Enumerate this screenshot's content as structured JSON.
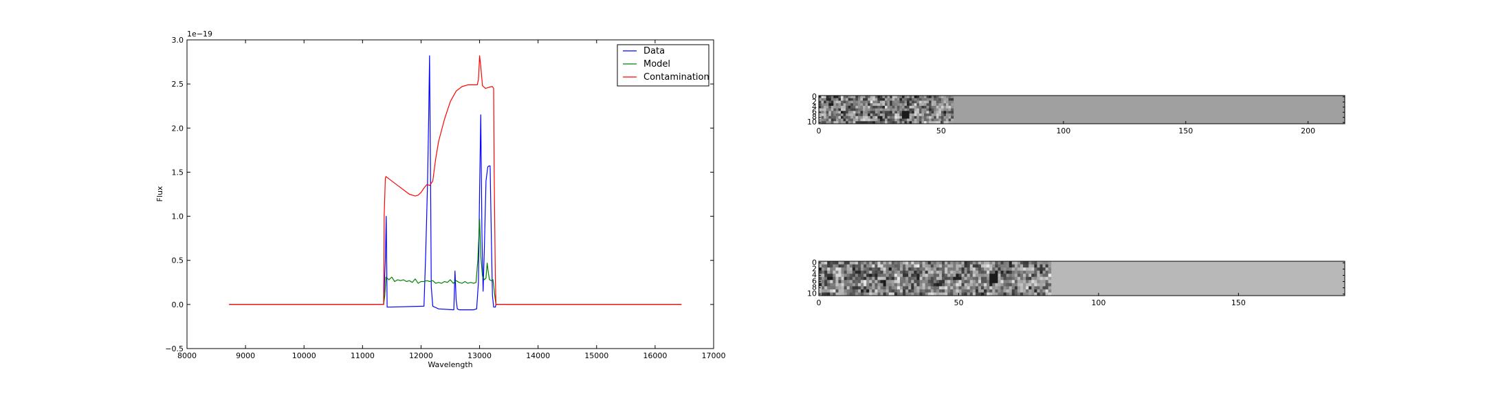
{
  "chart_data": [
    {
      "type": "line",
      "xlabel": "Wavelength",
      "ylabel": "Flux",
      "offset_text": "1e−19",
      "xlim": [
        8000,
        17000
      ],
      "ylim": [
        -0.5,
        3.0
      ],
      "xticks": [
        8000,
        9000,
        10000,
        11000,
        12000,
        13000,
        14000,
        15000,
        16000,
        17000
      ],
      "yticks": [
        -0.5,
        0.0,
        0.5,
        1.0,
        1.5,
        2.0,
        2.5,
        3.0
      ],
      "xtick_labels": [
        "8000",
        "9000",
        "10000",
        "11000",
        "12000",
        "13000",
        "14000",
        "15000",
        "16000",
        "17000"
      ],
      "ytick_labels": [
        "−0.5",
        "0.0",
        "0.5",
        "1.0",
        "1.5",
        "2.0",
        "2.5",
        "3.0"
      ],
      "legend_position": "top-right",
      "grid": false,
      "series": [
        {
          "name": "Data",
          "color": "#0000ff",
          "x": [
            8720,
            11360,
            11390,
            11405,
            11420,
            11450,
            12050,
            12080,
            12110,
            12130,
            12145,
            12160,
            12175,
            12200,
            12300,
            12560,
            12580,
            12600,
            12620,
            12650,
            12700,
            12900,
            12950,
            12980,
            13000,
            13020,
            13040,
            13060,
            13080,
            13110,
            13140,
            13160,
            13180,
            13200,
            13220,
            13240,
            13270,
            13280,
            16450
          ],
          "y": [
            0,
            0,
            0.5,
            1.0,
            -0.03,
            -0.03,
            -0.02,
            0.6,
            1.35,
            2.1,
            2.82,
            1.6,
            0.2,
            -0.02,
            -0.05,
            -0.06,
            0.38,
            0.05,
            -0.05,
            -0.06,
            -0.06,
            -0.06,
            -0.05,
            0.25,
            1.3,
            2.15,
            0.8,
            0.15,
            0.6,
            1.4,
            1.56,
            1.57,
            1.57,
            0.8,
            0.1,
            -0.03,
            -0.03,
            0,
            0
          ]
        },
        {
          "name": "Model",
          "color": "#008000",
          "x": [
            8720,
            11360,
            11380,
            11400,
            11420,
            11450,
            11500,
            11550,
            11600,
            11650,
            11700,
            11750,
            11800,
            11850,
            11900,
            11950,
            12000,
            12050,
            12100,
            12150,
            12200,
            12250,
            12300,
            12350,
            12400,
            12450,
            12500,
            12550,
            12600,
            12650,
            12700,
            12750,
            12800,
            12850,
            12900,
            12940,
            12970,
            13000,
            13020,
            13050,
            13080,
            13110,
            13130,
            13150,
            13170,
            13200,
            13230,
            13260,
            13280,
            16450
          ],
          "y": [
            0,
            0,
            0.1,
            0.31,
            0.3,
            0.28,
            0.31,
            0.26,
            0.28,
            0.27,
            0.28,
            0.26,
            0.27,
            0.25,
            0.29,
            0.24,
            0.26,
            0.26,
            0.27,
            0.26,
            0.27,
            0.24,
            0.25,
            0.24,
            0.26,
            0.25,
            0.28,
            0.24,
            0.27,
            0.25,
            0.24,
            0.26,
            0.24,
            0.25,
            0.24,
            0.25,
            0.5,
            0.97,
            0.55,
            0.32,
            0.28,
            0.3,
            0.47,
            0.36,
            0.28,
            0.27,
            0.28,
            0.1,
            0,
            0
          ]
        },
        {
          "name": "Contamination",
          "color": "#ff0000",
          "x": [
            8720,
            11360,
            11370,
            11390,
            11400,
            11500,
            11600,
            11700,
            11800,
            11850,
            11900,
            11950,
            12000,
            12050,
            12100,
            12150,
            12200,
            12250,
            12300,
            12400,
            12500,
            12600,
            12700,
            12800,
            12900,
            12940,
            12960,
            12980,
            13000,
            13020,
            13050,
            13100,
            13150,
            13200,
            13220,
            13240,
            13250,
            13270,
            13280,
            16450
          ],
          "y": [
            0,
            0,
            1.0,
            1.43,
            1.45,
            1.4,
            1.35,
            1.3,
            1.25,
            1.24,
            1.23,
            1.24,
            1.27,
            1.32,
            1.36,
            1.35,
            1.4,
            1.65,
            1.85,
            2.1,
            2.3,
            2.42,
            2.47,
            2.49,
            2.49,
            2.49,
            2.49,
            2.55,
            2.82,
            2.7,
            2.48,
            2.45,
            2.46,
            2.47,
            2.47,
            2.45,
            1.5,
            0.3,
            0,
            0
          ]
        }
      ]
    },
    {
      "type": "heatmap",
      "xlim": [
        0,
        215
      ],
      "ylim": [
        11,
        0
      ],
      "xticks": [
        0,
        50,
        100,
        150,
        200
      ],
      "yticks": [
        0,
        2,
        4,
        6,
        8,
        10
      ],
      "xtick_labels": [
        "0",
        "50",
        "100",
        "150",
        "200"
      ],
      "ytick_labels": [
        "0",
        "2",
        "4",
        "6",
        "8",
        "10"
      ],
      "colormap": "gray",
      "noise_region_x": [
        0,
        55
      ],
      "background_gray": "#a0a0a0",
      "dark_spot": {
        "x": 35,
        "y": 7
      }
    },
    {
      "type": "heatmap",
      "xlim": [
        0,
        188
      ],
      "ylim": [
        11,
        0
      ],
      "xticks": [
        0,
        50,
        100,
        150
      ],
      "yticks": [
        0,
        2,
        4,
        6,
        8,
        10
      ],
      "xtick_labels": [
        "0",
        "50",
        "100",
        "150"
      ],
      "ytick_labels": [
        "0",
        "2",
        "4",
        "6",
        "8",
        "10"
      ],
      "colormap": "gray",
      "noise_region_x": [
        0,
        83
      ],
      "background_gray": "#b8b8b8",
      "dark_spot": {
        "x": 62,
        "y": 5
      }
    }
  ]
}
